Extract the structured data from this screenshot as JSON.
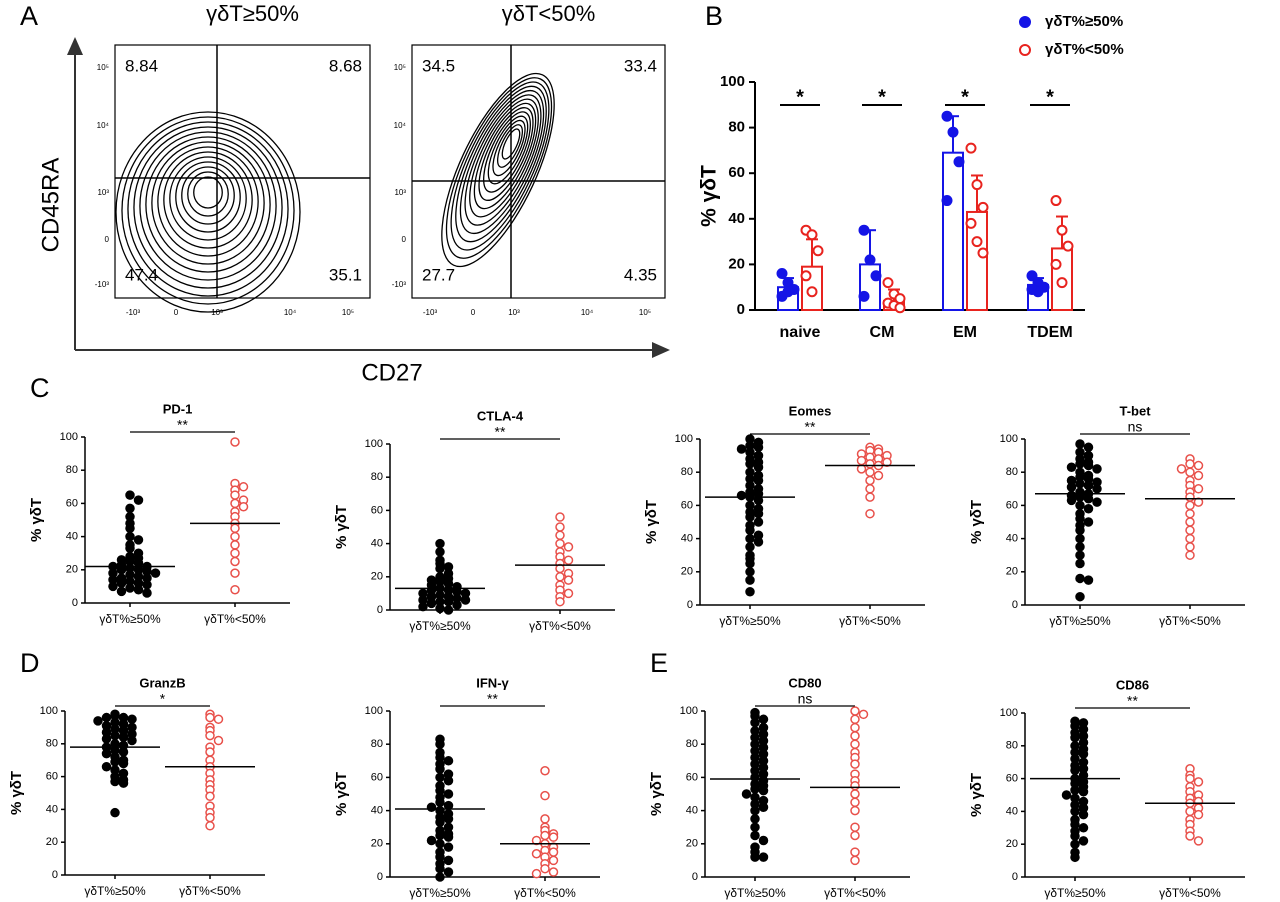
{
  "panel_labels": [
    "A",
    "B",
    "C",
    "D",
    "E"
  ],
  "chart_data": [
    {
      "type": "flow",
      "x_label": "CD27",
      "y_label": "CD45RA",
      "xtick_labels": [
        "-10³",
        "0",
        "10³",
        "10⁴",
        "10⁵"
      ],
      "ytick_labels": [
        "10⁵",
        "10⁴",
        "10³",
        "0",
        "-10³"
      ],
      "plots": [
        {
          "title": "γδT≥50%",
          "quadrants": [
            8.84,
            8.68,
            47.4,
            35.1
          ]
        },
        {
          "title": "γδT<50%",
          "quadrants": [
            34.5,
            33.4,
            27.7,
            4.35
          ]
        }
      ]
    },
    {
      "type": "bar",
      "y_label": "% γδT",
      "categories": [
        "naive",
        "CM",
        "EM",
        "TDEM"
      ],
      "ylim": [
        0,
        100
      ],
      "yticks": [
        0,
        20,
        40,
        60,
        80,
        100
      ],
      "significance": [
        "*",
        "*",
        "*",
        "*"
      ],
      "series": [
        {
          "name": "γδT%≥50%",
          "color": "#1414e6",
          "filled": true,
          "values": [
            10,
            20,
            69,
            11
          ],
          "errors": [
            4,
            15,
            16,
            3
          ],
          "points": [
            [
              16,
              12,
              9,
              6,
              8
            ],
            [
              35,
              22,
              15,
              6
            ],
            [
              85,
              78,
              65,
              48
            ],
            [
              15,
              12,
              10,
              9,
              8
            ]
          ]
        },
        {
          "name": "γδT%<50%",
          "color": "#e8231e",
          "filled": false,
          "values": [
            19,
            4,
            43,
            27
          ],
          "errors": [
            12,
            5,
            16,
            14
          ],
          "points": [
            [
              35,
              33,
              26,
              15,
              8
            ],
            [
              12,
              7,
              5,
              3,
              2,
              1
            ],
            [
              71,
              55,
              45,
              38,
              30,
              25
            ],
            [
              48,
              35,
              28,
              20,
              12
            ]
          ]
        }
      ]
    },
    {
      "type": "dot",
      "title": "PD-1",
      "y_label": "% γδT",
      "categories": [
        "γδT%≥50%",
        "γδT%<50%"
      ],
      "ylim": [
        0,
        100
      ],
      "yticks": [
        0,
        20,
        40,
        60,
        80,
        100
      ],
      "significance": "**",
      "groups": [
        {
          "color": "#000000",
          "filled": true,
          "mean": 22,
          "values": [
            65,
            62,
            57,
            52,
            48,
            45,
            40,
            38,
            35,
            33,
            30,
            28,
            27,
            26,
            25,
            24,
            23,
            22,
            22,
            21,
            20,
            20,
            19,
            18,
            18,
            17,
            16,
            15,
            15,
            14,
            13,
            12,
            12,
            11,
            10,
            9,
            8,
            7,
            6
          ]
        },
        {
          "color": "#e8504a",
          "filled": false,
          "mean": 48,
          "values": [
            97,
            72,
            70,
            68,
            65,
            62,
            60,
            58,
            55,
            52,
            48,
            45,
            40,
            35,
            30,
            25,
            18,
            8
          ]
        }
      ]
    },
    {
      "type": "dot",
      "title": "CTLA-4",
      "y_label": "% γδT",
      "categories": [
        "γδT%≥50%",
        "γδT%<50%"
      ],
      "ylim": [
        0,
        100
      ],
      "yticks": [
        0,
        20,
        40,
        60,
        80,
        100
      ],
      "significance": "**",
      "groups": [
        {
          "color": "#000000",
          "filled": true,
          "mean": 13,
          "values": [
            40,
            35,
            30,
            28,
            26,
            25,
            22,
            20,
            19,
            18,
            17,
            16,
            15,
            14,
            13,
            12,
            12,
            11,
            10,
            10,
            9,
            8,
            8,
            7,
            6,
            6,
            5,
            5,
            4,
            3,
            2,
            1,
            0
          ]
        },
        {
          "color": "#e8504a",
          "filled": false,
          "mean": 27,
          "values": [
            56,
            50,
            45,
            40,
            38,
            35,
            32,
            30,
            28,
            25,
            22,
            20,
            18,
            15,
            12,
            10,
            8,
            5
          ]
        }
      ]
    },
    {
      "type": "dot",
      "title": "Eomes",
      "y_label": "% γδT",
      "categories": [
        "γδT%≥50%",
        "γδT%<50%"
      ],
      "ylim": [
        0,
        100
      ],
      "yticks": [
        0,
        20,
        40,
        60,
        80,
        100
      ],
      "significance": "**",
      "groups": [
        {
          "color": "#000000",
          "filled": true,
          "mean": 65,
          "values": [
            100,
            98,
            96,
            95,
            94,
            92,
            90,
            88,
            86,
            85,
            83,
            80,
            78,
            76,
            75,
            72,
            70,
            68,
            67,
            66,
            65,
            63,
            60,
            58,
            56,
            55,
            53,
            50,
            48,
            45,
            42,
            40,
            38,
            35,
            30,
            28,
            25,
            20,
            15,
            8
          ]
        },
        {
          "color": "#e8504a",
          "filled": false,
          "mean": 84,
          "values": [
            95,
            94,
            93,
            92,
            91,
            90,
            89,
            88,
            87,
            86,
            85,
            84,
            82,
            80,
            78,
            75,
            70,
            65,
            55
          ]
        }
      ]
    },
    {
      "type": "dot",
      "title": "T-bet",
      "y_label": "% γδT",
      "categories": [
        "γδT%≥50%",
        "γδT%<50%"
      ],
      "ylim": [
        0,
        100
      ],
      "yticks": [
        0,
        20,
        40,
        60,
        80,
        100
      ],
      "significance": "ns",
      "groups": [
        {
          "color": "#000000",
          "filled": true,
          "mean": 67,
          "values": [
            97,
            95,
            92,
            90,
            88,
            86,
            85,
            84,
            83,
            82,
            80,
            78,
            77,
            76,
            75,
            74,
            73,
            72,
            71,
            70,
            68,
            67,
            66,
            65,
            64,
            63,
            62,
            60,
            58,
            55,
            52,
            50,
            48,
            45,
            40,
            35,
            30,
            25,
            16,
            15,
            5
          ]
        },
        {
          "color": "#e8504a",
          "filled": false,
          "mean": 64,
          "values": [
            88,
            85,
            84,
            82,
            80,
            78,
            75,
            72,
            70,
            68,
            65,
            62,
            60,
            55,
            50,
            45,
            40,
            35,
            30
          ]
        }
      ]
    },
    {
      "type": "dot",
      "title": "GranzB",
      "y_label": "% γδT",
      "categories": [
        "γδT%≥50%",
        "γδT%<50%"
      ],
      "ylim": [
        0,
        100
      ],
      "yticks": [
        0,
        20,
        40,
        60,
        80,
        100
      ],
      "significance": "*",
      "groups": [
        {
          "color": "#000000",
          "filled": true,
          "mean": 78,
          "values": [
            98,
            97,
            96,
            96,
            95,
            94,
            93,
            92,
            91,
            90,
            89,
            88,
            87,
            86,
            85,
            84,
            83,
            82,
            80,
            79,
            78,
            76,
            75,
            74,
            72,
            70,
            69,
            68,
            66,
            64,
            62,
            60,
            58,
            57,
            56,
            38
          ]
        },
        {
          "color": "#e8504a",
          "filled": false,
          "mean": 66,
          "values": [
            98,
            96,
            95,
            90,
            88,
            85,
            82,
            78,
            75,
            70,
            66,
            62,
            58,
            55,
            52,
            48,
            42,
            38,
            35,
            30
          ]
        }
      ]
    },
    {
      "type": "dot",
      "title": "IFN-γ",
      "y_label": "% γδT",
      "categories": [
        "γδT%≥50%",
        "γδT%<50%"
      ],
      "ylim": [
        0,
        100
      ],
      "yticks": [
        0,
        20,
        40,
        60,
        80,
        100
      ],
      "significance": "**",
      "groups": [
        {
          "color": "#000000",
          "filled": true,
          "mean": 41,
          "values": [
            83,
            80,
            75,
            72,
            70,
            68,
            65,
            62,
            60,
            58,
            55,
            52,
            50,
            48,
            45,
            43,
            42,
            40,
            38,
            36,
            35,
            33,
            30,
            28,
            26,
            25,
            24,
            22,
            20,
            18,
            15,
            12,
            10,
            8,
            5,
            3,
            0
          ]
        },
        {
          "color": "#e8504a",
          "filled": false,
          "mean": 20,
          "values": [
            64,
            49,
            35,
            30,
            28,
            26,
            25,
            24,
            22,
            20,
            18,
            16,
            15,
            14,
            12,
            10,
            8,
            5,
            3,
            2
          ]
        }
      ]
    },
    {
      "type": "dot",
      "title": "CD80",
      "y_label": "% γδT",
      "categories": [
        "γδT%≥50%",
        "γδT%<50%"
      ],
      "ylim": [
        0,
        100
      ],
      "yticks": [
        0,
        20,
        40,
        60,
        80,
        100
      ],
      "significance": "ns",
      "groups": [
        {
          "color": "#000000",
          "filled": true,
          "mean": 59,
          "values": [
            99,
            97,
            95,
            93,
            90,
            88,
            86,
            84,
            82,
            80,
            78,
            76,
            74,
            72,
            70,
            68,
            66,
            64,
            62,
            60,
            58,
            56,
            55,
            53,
            52,
            50,
            48,
            46,
            44,
            42,
            40,
            35,
            30,
            25,
            22,
            18,
            15,
            12,
            12
          ]
        },
        {
          "color": "#e8504a",
          "filled": false,
          "mean": 54,
          "values": [
            100,
            98,
            95,
            90,
            85,
            80,
            75,
            72,
            68,
            62,
            58,
            55,
            50,
            45,
            40,
            30,
            25,
            15,
            10
          ]
        }
      ]
    },
    {
      "type": "dot",
      "title": "CD86",
      "y_label": "% γδT",
      "categories": [
        "γδT%≥50%",
        "γδT%<50%"
      ],
      "ylim": [
        0,
        100
      ],
      "yticks": [
        0,
        20,
        40,
        60,
        80,
        100
      ],
      "significance": "**",
      "groups": [
        {
          "color": "#000000",
          "filled": true,
          "mean": 60,
          "values": [
            95,
            94,
            92,
            90,
            88,
            86,
            85,
            82,
            80,
            78,
            76,
            75,
            72,
            70,
            68,
            66,
            65,
            62,
            60,
            58,
            57,
            55,
            53,
            52,
            50,
            48,
            46,
            44,
            42,
            40,
            38,
            35,
            32,
            30,
            28,
            25,
            22,
            20,
            15,
            12
          ]
        },
        {
          "color": "#e8504a",
          "filled": false,
          "mean": 45,
          "values": [
            66,
            62,
            60,
            58,
            55,
            52,
            50,
            48,
            46,
            45,
            42,
            40,
            38,
            35,
            32,
            28,
            25,
            22
          ]
        }
      ]
    }
  ]
}
